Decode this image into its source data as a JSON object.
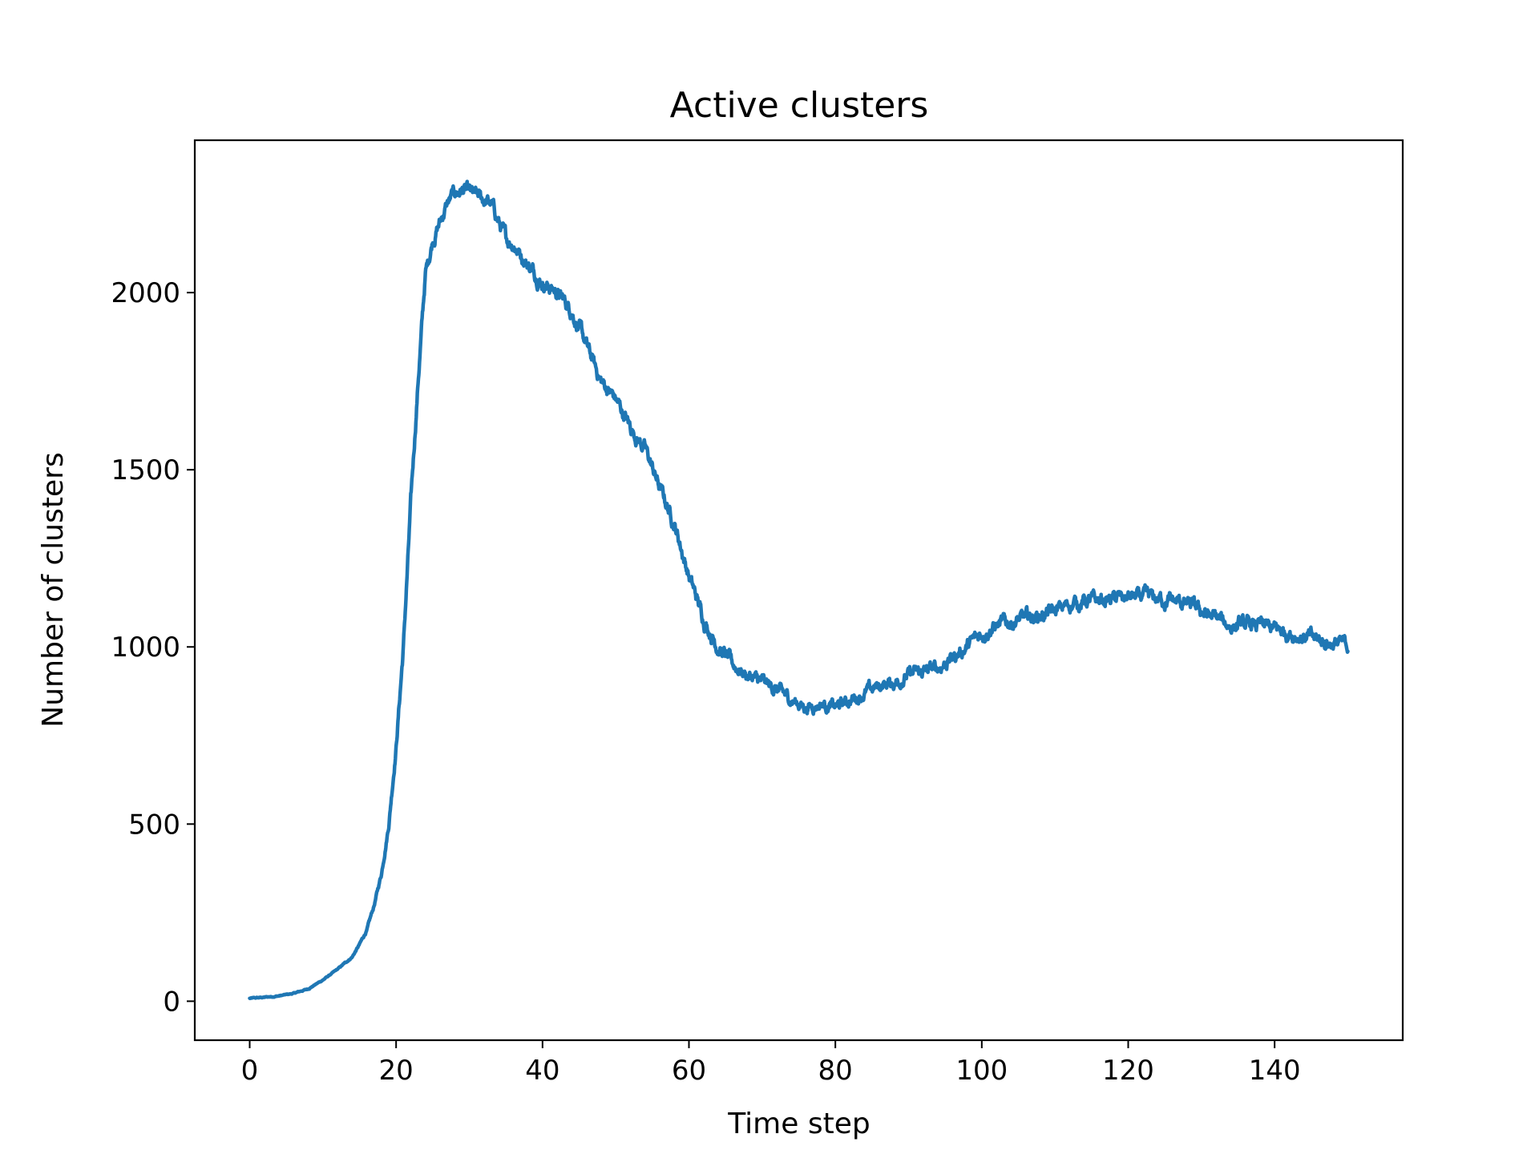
{
  "chart_data": {
    "type": "line",
    "title": "Active clusters",
    "xlabel": "Time step",
    "ylabel": "Number of clusters",
    "xlim": [
      -7.5,
      157.5
    ],
    "ylim": [
      -110,
      2430
    ],
    "xticks": [
      0,
      20,
      40,
      60,
      80,
      100,
      120,
      140
    ],
    "yticks": [
      0,
      500,
      1000,
      1500,
      2000
    ],
    "grid": false,
    "legend": "none",
    "color": "#1f77b4",
    "noise_amplitude": 25,
    "series": [
      {
        "x": [
          0,
          2,
          4,
          6,
          8,
          10,
          12,
          14,
          15,
          16,
          17,
          18,
          19,
          20,
          21,
          22,
          23,
          24,
          25,
          26,
          27,
          28,
          29,
          30,
          31,
          32,
          33,
          34,
          35,
          36,
          38,
          40,
          42,
          44,
          46,
          48,
          50,
          52,
          54,
          56,
          58,
          60,
          62,
          64,
          66,
          68,
          70,
          72,
          74,
          76,
          78,
          80,
          82,
          84,
          86,
          88,
          90,
          92,
          94,
          96,
          98,
          100,
          102,
          104,
          106,
          108,
          110,
          112,
          114,
          116,
          118,
          120,
          122,
          124,
          126,
          128,
          130,
          132,
          134,
          136,
          138,
          140,
          142,
          144,
          146,
          148,
          150
        ],
        "y": [
          8,
          11,
          15,
          22,
          35,
          60,
          90,
          125,
          160,
          200,
          270,
          360,
          500,
          720,
          1000,
          1400,
          1750,
          2050,
          2150,
          2200,
          2250,
          2280,
          2290,
          2280,
          2270,
          2260,
          2250,
          2200,
          2150,
          2140,
          2080,
          2030,
          2000,
          1950,
          1850,
          1750,
          1700,
          1620,
          1560,
          1450,
          1350,
          1200,
          1080,
          1000,
          950,
          920,
          900,
          880,
          850,
          830,
          840,
          830,
          850,
          870,
          890,
          900,
          920,
          930,
          940,
          970,
          1000,
          1040,
          1060,
          1070,
          1080,
          1090,
          1100,
          1120,
          1130,
          1130,
          1135,
          1140,
          1140,
          1135,
          1130,
          1120,
          1100,
          1080,
          1060,
          1060,
          1060,
          1050,
          1040,
          1030,
          1020,
          1010,
          1005
        ]
      }
    ]
  }
}
